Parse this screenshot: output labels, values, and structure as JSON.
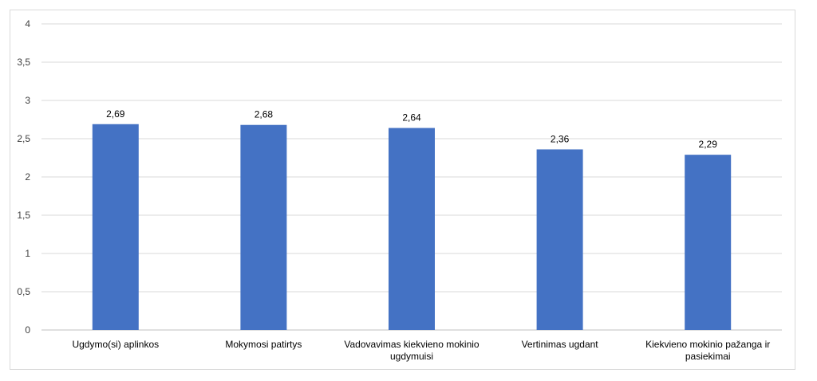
{
  "chart_data": {
    "type": "bar",
    "categories": [
      "Ugdymo(si) aplinkos",
      "Mokymosi patirtys",
      "Vadovavimas kiekvieno mokinio ugdymuisi",
      "Vertinimas ugdant",
      "Kiekvieno mokinio pažanga ir pasiekimai"
    ],
    "category_lines": [
      [
        "Ugdymo(si) aplinkos"
      ],
      [
        "Mokymosi patirtys"
      ],
      [
        "Vadovavimas kiekvieno mokinio",
        "ugdymuisi"
      ],
      [
        "Vertinimas ugdant"
      ],
      [
        "Kiekvieno mokinio pažanga ir",
        "pasiekimai"
      ]
    ],
    "values": [
      2.69,
      2.68,
      2.64,
      2.36,
      2.29
    ],
    "data_labels": [
      "2,69",
      "2,68",
      "2,64",
      "2,36",
      "2,29"
    ],
    "ylim": [
      0,
      4
    ],
    "yticks": [
      0,
      0.5,
      1,
      1.5,
      2,
      2.5,
      3,
      3.5,
      4
    ],
    "ytick_labels": [
      "0",
      "0,5",
      "1",
      "1,5",
      "2",
      "2,5",
      "3",
      "3,5",
      "4"
    ],
    "grid": true,
    "bar_color": "#4472C4",
    "grid_color": "#d9d9d9",
    "title": "",
    "xlabel": "",
    "ylabel": ""
  }
}
